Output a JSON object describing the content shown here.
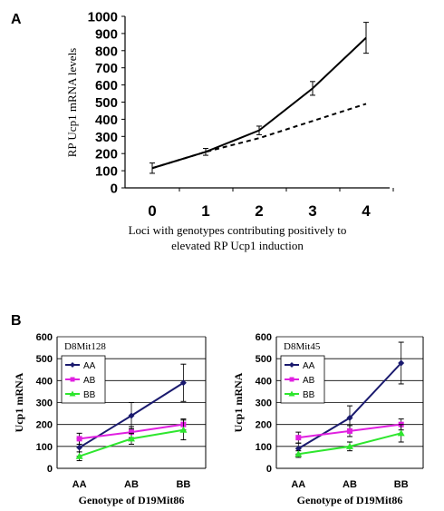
{
  "panel_labels": {
    "a": "A",
    "b": "B"
  },
  "colors": {
    "aa": "#1a1a6e",
    "ab": "#e020e0",
    "bb": "#2ee62e",
    "line": "#000000"
  },
  "chart_data": [
    {
      "type": "line",
      "title": "",
      "ylabel": "RP Ucp1 mRNA levels",
      "xlabel_lines": [
        "Loci with genotypes contributing positively to",
        "elevated RP Ucp1 induction"
      ],
      "ylim": [
        0,
        1000
      ],
      "yticks": [
        "0",
        "100",
        "200",
        "300",
        "400",
        "500",
        "600",
        "700",
        "800",
        "900",
        "1000"
      ],
      "x": [
        "0",
        "1",
        "2",
        "3",
        "4"
      ],
      "series": [
        {
          "style": "solid",
          "values": [
            115,
            210,
            335,
            580,
            875
          ],
          "err": [
            30,
            20,
            25,
            40,
            90
          ]
        },
        {
          "style": "dashed",
          "values": [
            115,
            210,
            290,
            390,
            490
          ]
        }
      ],
      "grid": false
    },
    {
      "type": "line",
      "title": "D8Mit128",
      "ylabel": "Ucp1 mRNA",
      "xlabel": "Genotype of D19Mit86",
      "ylim": [
        0,
        600
      ],
      "yticks": [
        "0",
        "100",
        "200",
        "300",
        "400",
        "500",
        "600"
      ],
      "categories": [
        "AA",
        "AB",
        "BB"
      ],
      "legend": [
        "AA",
        "AB",
        "BB"
      ],
      "legend_position": "top-left",
      "grid": true,
      "series": [
        {
          "name": "AA",
          "values": [
            95,
            240,
            390
          ],
          "err": [
            40,
            60,
            85
          ]
        },
        {
          "name": "AB",
          "values": [
            135,
            165,
            200
          ],
          "err": [
            25,
            25,
            25
          ]
        },
        {
          "name": "BB",
          "values": [
            55,
            135,
            175
          ],
          "err": [
            20,
            25,
            45
          ]
        }
      ]
    },
    {
      "type": "line",
      "title": "D8Mit45",
      "ylabel": "Ucp1 mRNA",
      "xlabel": "Genotype of D19Mit86",
      "ylim": [
        0,
        600
      ],
      "yticks": [
        "0",
        "100",
        "200",
        "300",
        "400",
        "500",
        "600"
      ],
      "categories": [
        "AA",
        "AB",
        "BB"
      ],
      "legend": [
        "AA",
        "AB",
        "BB"
      ],
      "legend_position": "top-left",
      "grid": true,
      "series": [
        {
          "name": "AA",
          "values": [
            90,
            230,
            480
          ],
          "err": [
            25,
            55,
            95
          ]
        },
        {
          "name": "AB",
          "values": [
            140,
            170,
            200
          ],
          "err": [
            25,
            25,
            25
          ]
        },
        {
          "name": "BB",
          "values": [
            65,
            100,
            160
          ],
          "err": [
            15,
            20,
            40
          ]
        }
      ]
    }
  ]
}
